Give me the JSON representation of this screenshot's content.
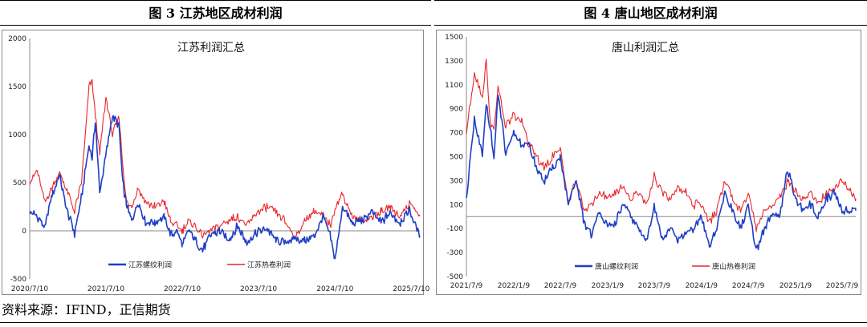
{
  "headers": [
    "图 3  江苏地区成材利润",
    "图 4  唐山地区成材利润"
  ],
  "source": "资料来源：IFIND，正信期货",
  "colors": {
    "rebar": "#1f3fc4",
    "hrc": "#e8262b",
    "axis": "#8a8a8a"
  },
  "chart_data": [
    {
      "type": "line",
      "title": "江苏利润汇总",
      "xlabel": "",
      "ylabel": "",
      "ylim": [
        -500,
        2000
      ],
      "y_ticks": [
        "2000",
        "1500",
        "1000",
        "500",
        "0",
        "-500"
      ],
      "x_ticks": [
        "2020/7/10",
        "2021/7/10",
        "2022/7/10",
        "2023/7/10",
        "2024/7/10",
        "2025/7/10"
      ],
      "xlim": [
        "2020/7/10",
        "2025/8/20"
      ],
      "legend_position": "bottom",
      "grid": false,
      "series": [
        {
          "name": "江苏螺纹利润",
          "x": [
            "2020/7/10",
            "2020/8/15",
            "2020/9/20",
            "2020/10/25",
            "2020/11/30",
            "2021/1/5",
            "2021/2/10",
            "2021/3/15",
            "2021/4/20",
            "2021/5/5",
            "2021/5/20",
            "2021/6/10",
            "2021/7/10",
            "2021/8/10",
            "2021/9/10",
            "2021/9/28",
            "2021/10/15",
            "2021/11/10",
            "2021/12/10",
            "2022/1/15",
            "2022/3/1",
            "2022/4/15",
            "2022/5/15",
            "2022/6/15",
            "2022/7/10",
            "2022/8/10",
            "2022/9/10",
            "2022/10/15",
            "2022/11/20",
            "2023/1/5",
            "2023/2/15",
            "2023/4/1",
            "2023/5/15",
            "2023/7/10",
            "2023/8/20",
            "2023/10/1",
            "2023/11/15",
            "2024/1/1",
            "2024/2/15",
            "2024/4/1",
            "2024/5/15",
            "2024/6/20",
            "2024/7/10",
            "2024/8/15",
            "2024/10/1",
            "2024/11/15",
            "2025/1/1",
            "2025/2/15",
            "2025/4/1",
            "2025/5/15",
            "2025/7/1",
            "2025/8/20"
          ],
          "values": [
            200,
            150,
            30,
            380,
            580,
            200,
            -20,
            350,
            900,
            750,
            1150,
            400,
            800,
            1200,
            1100,
            500,
            280,
            100,
            300,
            100,
            80,
            150,
            -50,
            0,
            -150,
            0,
            -100,
            -200,
            -50,
            0,
            -100,
            50,
            -120,
            0,
            20,
            -100,
            -120,
            -80,
            -100,
            -60,
            150,
            -80,
            -300,
            250,
            80,
            100,
            200,
            80,
            200,
            80,
            220,
            -50
          ]
        },
        {
          "name": "江苏热卷利润",
          "x": [
            "2020/7/10",
            "2020/8/15",
            "2020/9/20",
            "2020/10/25",
            "2020/11/30",
            "2021/1/5",
            "2021/2/10",
            "2021/3/15",
            "2021/4/20",
            "2021/5/5",
            "2021/5/20",
            "2021/6/10",
            "2021/7/10",
            "2021/8/10",
            "2021/9/10",
            "2021/9/28",
            "2021/10/15",
            "2021/11/10",
            "2021/12/10",
            "2022/1/15",
            "2022/3/1",
            "2022/4/15",
            "2022/5/15",
            "2022/6/15",
            "2022/7/10",
            "2022/8/10",
            "2022/9/10",
            "2022/10/15",
            "2022/11/20",
            "2023/1/5",
            "2023/2/15",
            "2023/4/1",
            "2023/5/15",
            "2023/7/10",
            "2023/8/20",
            "2023/10/1",
            "2023/11/15",
            "2024/1/1",
            "2024/2/15",
            "2024/4/1",
            "2024/5/15",
            "2024/6/20",
            "2024/7/10",
            "2024/8/15",
            "2024/10/1",
            "2024/11/15",
            "2025/1/1",
            "2025/2/15",
            "2025/4/1",
            "2025/5/15",
            "2025/7/1",
            "2025/8/20"
          ],
          "values": [
            500,
            620,
            300,
            450,
            600,
            420,
            200,
            500,
            1500,
            1550,
            1200,
            800,
            1400,
            1000,
            1200,
            700,
            300,
            250,
            450,
            300,
            250,
            300,
            100,
            50,
            0,
            100,
            50,
            -50,
            0,
            50,
            100,
            150,
            50,
            200,
            250,
            200,
            100,
            -80,
            100,
            200,
            150,
            50,
            250,
            380,
            150,
            100,
            150,
            200,
            250,
            150,
            300,
            150
          ]
        }
      ]
    },
    {
      "type": "line",
      "title": "唐山利润汇总",
      "xlabel": "",
      "ylabel": "",
      "ylim": [
        -500,
        1500
      ],
      "y_ticks": [
        "1500",
        "1300",
        "1100",
        "900",
        "700",
        "500",
        "300",
        "100",
        "-100",
        "-300",
        "-500"
      ],
      "x_ticks": [
        "2021/7/9",
        "2022/1/9",
        "2022/7/9",
        "2023/1/9",
        "2023/7/9",
        "2024/1/9",
        "2024/7/9",
        "2025/1/9",
        "2025/7/9"
      ],
      "xlim": [
        "2021/7/9",
        "2025/8/31"
      ],
      "legend_position": "bottom",
      "grid": false,
      "series": [
        {
          "name": "唐山螺纹利润",
          "x": [
            "2021/7/9",
            "2021/8/9",
            "2021/9/9",
            "2021/9/24",
            "2021/10/9",
            "2021/10/24",
            "2021/11/9",
            "2021/11/24",
            "2021/12/9",
            "2022/1/9",
            "2022/2/9",
            "2022/3/9",
            "2022/4/9",
            "2022/5/9",
            "2022/6/9",
            "2022/7/9",
            "2022/8/9",
            "2022/9/9",
            "2022/10/9",
            "2022/11/9",
            "2022/12/9",
            "2023/1/9",
            "2023/2/9",
            "2023/3/9",
            "2023/4/9",
            "2023/5/9",
            "2023/6/9",
            "2023/7/9",
            "2023/8/9",
            "2023/9/9",
            "2023/10/9",
            "2023/11/9",
            "2023/12/9",
            "2024/1/9",
            "2024/2/9",
            "2024/3/9",
            "2024/4/9",
            "2024/5/9",
            "2024/6/9",
            "2024/7/9",
            "2024/8/9",
            "2024/9/9",
            "2024/10/9",
            "2024/11/9",
            "2024/12/9",
            "2025/1/9",
            "2025/2/9",
            "2025/3/9",
            "2025/4/9",
            "2025/5/9",
            "2025/6/9",
            "2025/7/9",
            "2025/8/31"
          ],
          "values": [
            150,
            800,
            500,
            950,
            750,
            500,
            1000,
            800,
            500,
            700,
            600,
            600,
            400,
            300,
            400,
            500,
            100,
            300,
            -50,
            -150,
            50,
            -100,
            -50,
            100,
            0,
            -100,
            -200,
            100,
            -200,
            -100,
            -200,
            -150,
            -100,
            0,
            -250,
            -100,
            200,
            50,
            -100,
            100,
            -300,
            -100,
            0,
            0,
            400,
            150,
            50,
            100,
            0,
            150,
            200,
            50,
            50
          ]
        },
        {
          "name": "唐山热卷利润",
          "x": [
            "2021/7/9",
            "2021/8/9",
            "2021/9/9",
            "2021/9/24",
            "2021/10/9",
            "2021/10/24",
            "2021/11/9",
            "2021/11/24",
            "2021/12/9",
            "2022/1/9",
            "2022/2/9",
            "2022/3/9",
            "2022/4/9",
            "2022/5/9",
            "2022/6/9",
            "2022/7/9",
            "2022/8/9",
            "2022/9/9",
            "2022/10/9",
            "2022/11/9",
            "2022/12/9",
            "2023/1/9",
            "2023/2/9",
            "2023/3/9",
            "2023/4/9",
            "2023/5/9",
            "2023/6/9",
            "2023/7/9",
            "2023/8/9",
            "2023/9/9",
            "2023/10/9",
            "2023/11/9",
            "2023/12/9",
            "2024/1/9",
            "2024/2/9",
            "2024/3/9",
            "2024/4/9",
            "2024/5/9",
            "2024/6/9",
            "2024/7/9",
            "2024/8/9",
            "2024/9/9",
            "2024/10/9",
            "2024/11/9",
            "2024/12/9",
            "2025/1/9",
            "2025/2/9",
            "2025/3/9",
            "2025/4/9",
            "2025/5/9",
            "2025/6/9",
            "2025/7/9",
            "2025/8/31"
          ],
          "values": [
            700,
            1200,
            1000,
            1300,
            800,
            700,
            1100,
            900,
            750,
            850,
            800,
            600,
            500,
            400,
            500,
            550,
            150,
            300,
            50,
            100,
            200,
            150,
            200,
            250,
            150,
            200,
            100,
            350,
            200,
            150,
            250,
            200,
            100,
            100,
            -50,
            50,
            300,
            150,
            50,
            200,
            -100,
            50,
            100,
            150,
            300,
            200,
            150,
            200,
            100,
            200,
            250,
            300,
            150
          ]
        }
      ]
    }
  ]
}
